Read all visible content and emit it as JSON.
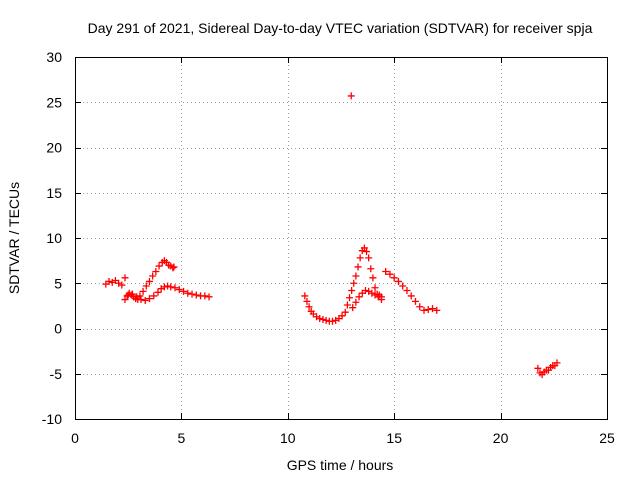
{
  "chart_data": {
    "type": "scatter",
    "title": "Day 291 of 2021, Sidereal Day-to-day VTEC variation (SDTVAR) for receiver spja",
    "xlabel": "GPS time / hours",
    "ylabel": "SDTVAR / TECUs",
    "xlim": [
      0,
      25
    ],
    "ylim": [
      -10,
      30
    ],
    "xticks": [
      0,
      5,
      10,
      15,
      20,
      25
    ],
    "yticks": [
      -10,
      -5,
      0,
      5,
      10,
      15,
      20,
      25,
      30
    ],
    "grid": true,
    "marker": "plus",
    "series": [
      {
        "name": "SDTVAR",
        "color": "#ff0000",
        "x": [
          1.45,
          1.6,
          1.75,
          1.9,
          2.05,
          2.2,
          2.35,
          2.35,
          2.45,
          2.55,
          2.65,
          2.75,
          2.85,
          2.95,
          3.05,
          3.2,
          3.35,
          3.5,
          3.65,
          3.8,
          3.95,
          4.1,
          4.2,
          4.3,
          4.4,
          4.5,
          4.6,
          4.65,
          2.5,
          2.7,
          2.9,
          3.1,
          3.3,
          3.5,
          3.7,
          3.9,
          4.05,
          4.2,
          4.35,
          4.5,
          4.7,
          4.9,
          5.1,
          5.3,
          5.5,
          5.7,
          5.9,
          6.1,
          6.3,
          10.8,
          10.9,
          11.0,
          11.1,
          11.2,
          11.35,
          11.5,
          11.65,
          11.8,
          11.95,
          12.1,
          12.25,
          12.4,
          12.55,
          12.7,
          12.8,
          12.9,
          13.0,
          13.1,
          13.2,
          13.3,
          13.4,
          13.5,
          13.6,
          13.7,
          13.8,
          13.9,
          14.0,
          14.1,
          14.2,
          14.3,
          14.4,
          13.05,
          13.2,
          13.35,
          13.5,
          13.65,
          13.8,
          13.95,
          14.1,
          14.25,
          14.4,
          14.6,
          14.8,
          15.0,
          15.2,
          15.4,
          15.6,
          15.8,
          16.0,
          16.2,
          16.4,
          16.6,
          16.8,
          17.0,
          12.98,
          21.75,
          21.85,
          21.95,
          22.05,
          22.15,
          22.25,
          22.35,
          22.45,
          22.55,
          22.65
        ],
        "y": [
          4.9,
          5.2,
          5.1,
          5.3,
          5.0,
          4.8,
          5.6,
          3.2,
          3.6,
          3.9,
          3.7,
          3.5,
          3.3,
          3.2,
          3.6,
          4.1,
          4.7,
          5.2,
          5.8,
          6.3,
          6.9,
          7.3,
          7.5,
          7.3,
          7.0,
          6.9,
          6.7,
          6.8,
          3.7,
          3.8,
          3.5,
          3.2,
          3.1,
          3.3,
          3.6,
          4.0,
          4.4,
          4.6,
          4.7,
          4.6,
          4.5,
          4.3,
          4.1,
          3.9,
          3.8,
          3.7,
          3.6,
          3.6,
          3.5,
          3.6,
          3.0,
          2.4,
          1.9,
          1.6,
          1.3,
          1.1,
          1.0,
          0.9,
          0.8,
          0.8,
          0.9,
          1.1,
          1.4,
          1.8,
          2.6,
          3.4,
          4.2,
          5.0,
          5.8,
          6.8,
          7.8,
          8.6,
          8.9,
          8.5,
          7.8,
          6.6,
          5.6,
          4.5,
          3.8,
          3.7,
          3.5,
          2.3,
          2.9,
          3.5,
          3.9,
          4.2,
          4.1,
          3.9,
          3.7,
          3.5,
          3.2,
          6.3,
          6.0,
          5.6,
          5.2,
          4.7,
          4.2,
          3.6,
          3.0,
          2.4,
          2.0,
          2.1,
          2.2,
          2.0,
          25.7,
          -4.4,
          -4.9,
          -5.1,
          -4.8,
          -4.6,
          -4.6,
          -4.3,
          -4.1,
          -4.1,
          -3.8
        ]
      }
    ]
  }
}
